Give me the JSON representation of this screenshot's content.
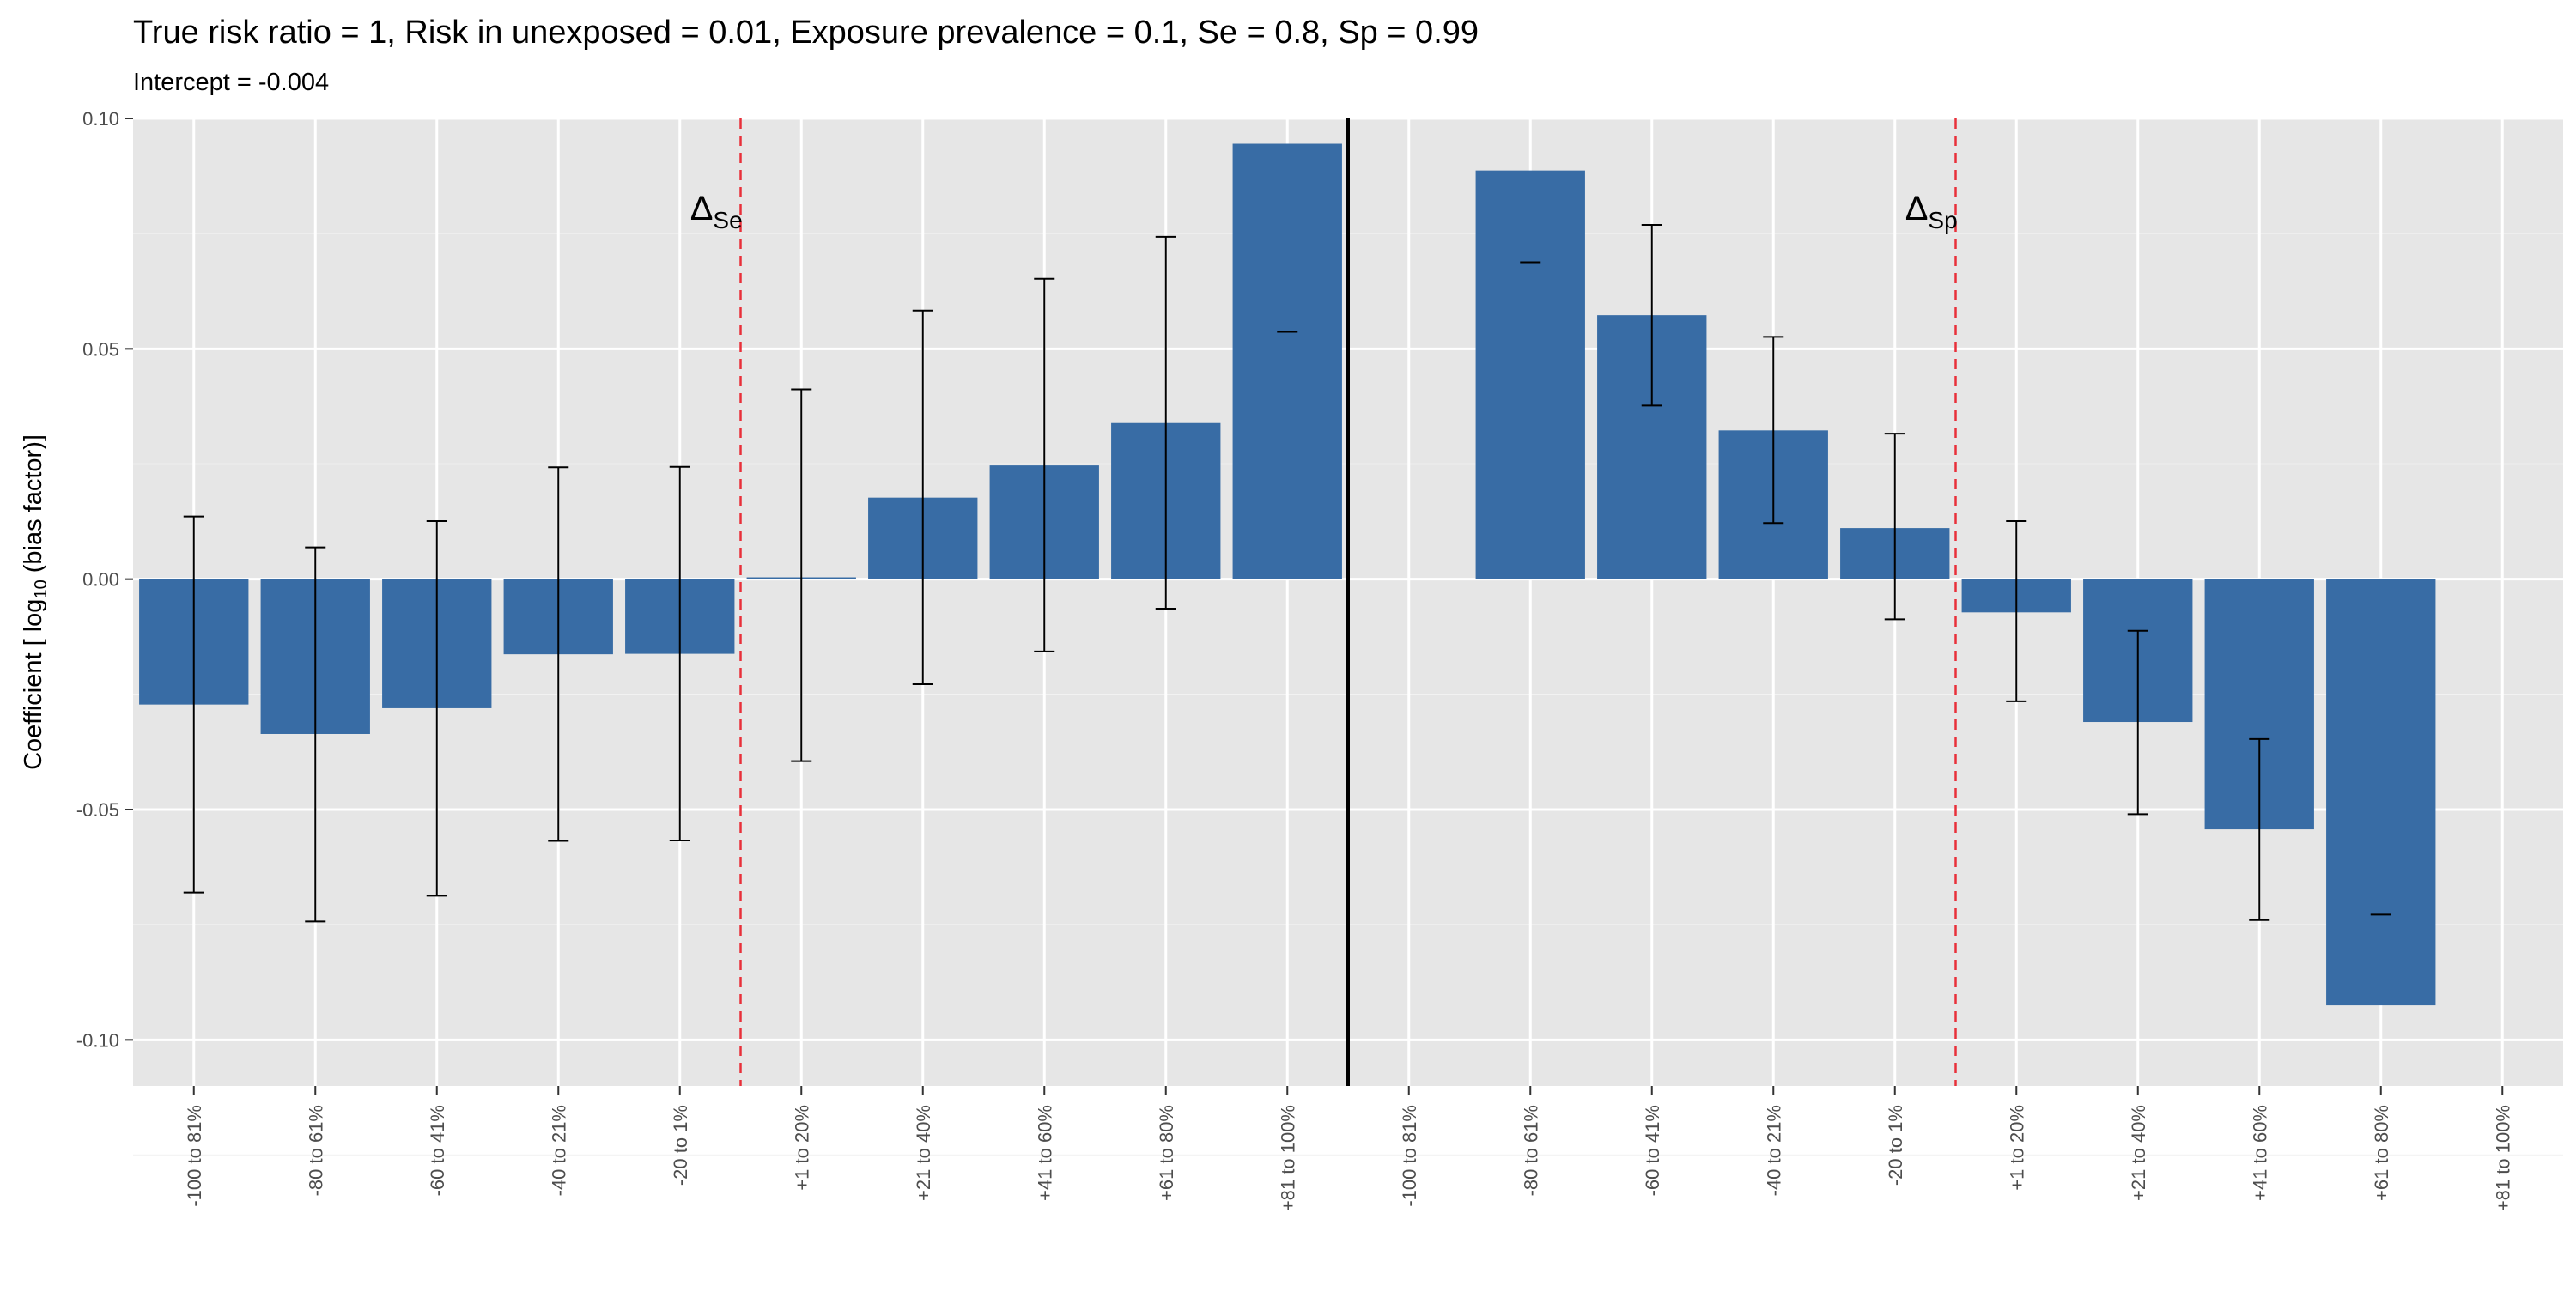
{
  "chart_data": {
    "type": "bar",
    "title": "True risk ratio = 1, Risk in unexposed = 0.01, Exposure prevalence = 0.1, Se = 0.8, Sp = 0.99",
    "subtitle": "Intercept = -0.004",
    "ylabel_pre": "Coefficient [ log",
    "ylabel_sub": "10",
    "ylabel_post": " (bias factor)]",
    "ylim": [
      -0.11,
      0.1
    ],
    "yticks": [
      {
        "value": 0.1,
        "label": "0.10"
      },
      {
        "value": 0.05,
        "label": "0.05"
      },
      {
        "value": 0.0,
        "label": "0.00"
      },
      {
        "value": -0.05,
        "label": "-0.05"
      },
      {
        "value": -0.1,
        "label": "-0.10"
      }
    ],
    "categories": [
      "-100 to 81%",
      "-80 to 61%",
      "-60 to 41%",
      "-40 to 21%",
      "-20 to 1%",
      "+1 to 20%",
      "+21 to 40%",
      "+41 to 60%",
      "+61 to 80%",
      "+81 to 100%",
      "-100 to 81%",
      "-80 to 61%",
      "-60 to 41%",
      "-40 to 21%",
      "-20 to 1%",
      "+1 to 20%",
      "+21 to 40%",
      "+41 to 60%",
      "+61 to 80%",
      "+81 to 100%"
    ],
    "values": [
      -0.0272,
      -0.0336,
      -0.028,
      -0.0163,
      -0.0162,
      0.0004,
      0.0177,
      0.0247,
      0.0339,
      0.0945,
      null,
      0.0887,
      0.0573,
      0.0323,
      0.0111,
      -0.0072,
      -0.031,
      -0.0543,
      -0.0925,
      null
    ],
    "error_low": [
      -0.068,
      -0.0743,
      -0.0687,
      -0.0568,
      -0.0567,
      -0.0395,
      -0.0228,
      -0.0157,
      -0.0064,
      0.0537,
      null,
      0.0688,
      0.0377,
      0.0122,
      -0.0087,
      -0.0265,
      -0.051,
      -0.074,
      -0.0728,
      null
    ],
    "error_high": [
      0.0136,
      0.0069,
      0.0126,
      0.0243,
      0.0244,
      0.0412,
      0.0583,
      0.0652,
      0.0743,
      0.0537,
      null,
      0.0688,
      0.0769,
      0.0526,
      0.0316,
      0.0126,
      -0.0112,
      -0.0347,
      -0.0728,
      null
    ],
    "bar_color": "#386CA5",
    "separator_color": "#E8303A",
    "panel_color": "#E6E6E6",
    "annotations": [
      {
        "symbol": "Δ",
        "sub": "Se",
        "category_pos": 5,
        "y": 0.078
      },
      {
        "symbol": "Δ",
        "sub": "Sp",
        "category_pos": 15,
        "y": 0.078
      }
    ],
    "dashed_after": [
      5,
      15
    ],
    "solid_after": [
      10
    ],
    "grid": true,
    "legend": "none"
  }
}
